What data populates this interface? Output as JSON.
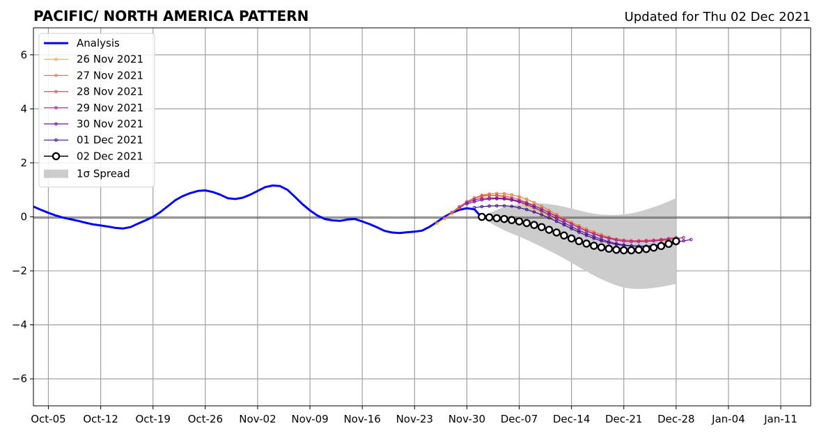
{
  "chart_data": {
    "type": "line",
    "title": "PACIFIC/ NORTH AMERICA PATTERN",
    "subtitle": "Updated for Thu 02 Dec 2021",
    "xlabel": "",
    "ylabel": "",
    "ylim": [
      -7,
      7
    ],
    "xlim_days": [
      "2021-10-03",
      "2022-01-15"
    ],
    "grid": true,
    "legend_position": "top-left",
    "x_ticks": [
      {
        "date": "2021-10-05",
        "label": "Oct-05"
      },
      {
        "date": "2021-10-12",
        "label": "Oct-12"
      },
      {
        "date": "2021-10-19",
        "label": "Oct-19"
      },
      {
        "date": "2021-10-26",
        "label": "Oct-26"
      },
      {
        "date": "2021-11-02",
        "label": "Nov-02"
      },
      {
        "date": "2021-11-09",
        "label": "Nov-09"
      },
      {
        "date": "2021-11-16",
        "label": "Nov-16"
      },
      {
        "date": "2021-11-23",
        "label": "Nov-23"
      },
      {
        "date": "2021-11-30",
        "label": "Nov-30"
      },
      {
        "date": "2021-12-07",
        "label": "Dec-07"
      },
      {
        "date": "2021-12-14",
        "label": "Dec-14"
      },
      {
        "date": "2021-12-21",
        "label": "Dec-21"
      },
      {
        "date": "2021-12-28",
        "label": "Dec-28"
      },
      {
        "date": "2022-01-04",
        "label": "Jan-04"
      },
      {
        "date": "2022-01-11",
        "label": "Jan-11"
      }
    ],
    "y_ticks": [
      {
        "value": 6,
        "label": "6"
      },
      {
        "value": 4,
        "label": "4"
      },
      {
        "value": 2,
        "label": "2"
      },
      {
        "value": 0,
        "label": "0"
      },
      {
        "value": -2,
        "label": "−2"
      },
      {
        "value": -4,
        "label": "−4"
      },
      {
        "value": -6,
        "label": "−6"
      }
    ],
    "analysis": {
      "name": "Analysis",
      "color": "#0000ff",
      "start_date": "2021-10-03",
      "values": [
        0.38,
        0.26,
        0.15,
        0.05,
        -0.03,
        -0.09,
        -0.15,
        -0.22,
        -0.28,
        -0.32,
        -0.36,
        -0.41,
        -0.43,
        -0.38,
        -0.25,
        -0.13,
        0.0,
        0.18,
        0.4,
        0.62,
        0.77,
        0.88,
        0.96,
        0.98,
        0.92,
        0.82,
        0.69,
        0.66,
        0.71,
        0.82,
        0.96,
        1.1,
        1.16,
        1.14,
        1.0,
        0.74,
        0.47,
        0.24,
        0.05,
        -0.08,
        -0.13,
        -0.15,
        -0.1,
        -0.08,
        -0.17,
        -0.27,
        -0.39,
        -0.52,
        -0.58,
        -0.6,
        -0.57,
        -0.55,
        -0.51,
        -0.37,
        -0.19,
        0.0,
        0.15,
        0.26,
        0.32,
        0.28,
        -0.02
      ]
    },
    "forecasts": [
      {
        "name": "26 Nov 2021",
        "color": "#f9a825",
        "start_date": "2021-11-26",
        "values": [
          -0.24,
          -0.06,
          0.14,
          0.36,
          0.53,
          0.66,
          0.75,
          0.79,
          0.78,
          0.73,
          0.66,
          0.55,
          0.43,
          0.3,
          0.17,
          0.03,
          -0.09
        ]
      },
      {
        "name": "27 Nov 2021",
        "color": "#ee7b2f",
        "start_date": "2021-11-27",
        "values": [
          -0.06,
          0.15,
          0.38,
          0.56,
          0.7,
          0.8,
          0.85,
          0.87,
          0.86,
          0.82,
          0.75,
          0.65,
          0.53,
          0.39,
          0.24,
          0.09,
          -0.06,
          -0.2,
          -0.33,
          -0.45,
          -0.56,
          -0.66,
          -0.75,
          -0.82,
          -0.86,
          -0.88,
          -0.89,
          -0.89,
          -0.89,
          -0.88,
          -0.86
        ]
      },
      {
        "name": "28 Nov 2021",
        "color": "#d95166",
        "start_date": "2021-11-28",
        "values": [
          0.17,
          0.38,
          0.56,
          0.7,
          0.78,
          0.8,
          0.8,
          0.77,
          0.72,
          0.64,
          0.54,
          0.42,
          0.3,
          0.15,
          0.01,
          -0.13,
          -0.26,
          -0.4,
          -0.52,
          -0.62,
          -0.71,
          -0.78,
          -0.83,
          -0.86,
          -0.88,
          -0.88,
          -0.87,
          -0.86,
          -0.83,
          -0.8,
          -0.76
        ]
      },
      {
        "name": "29 Nov 2021",
        "color": "#a3238f",
        "start_date": "2021-11-29",
        "values": [
          0.32,
          0.52,
          0.63,
          0.68,
          0.7,
          0.7,
          0.69,
          0.65,
          0.59,
          0.51,
          0.41,
          0.29,
          0.16,
          0.02,
          -0.12,
          -0.26,
          -0.39,
          -0.52,
          -0.63,
          -0.73,
          -0.8,
          -0.86,
          -0.9,
          -0.92,
          -0.92,
          -0.91,
          -0.89,
          -0.86,
          -0.83,
          -0.8,
          -0.77
        ]
      },
      {
        "name": "30 Nov 2021",
        "color": "#6a13a6",
        "start_date": "2021-11-30",
        "values": [
          0.48,
          0.56,
          0.63,
          0.66,
          0.67,
          0.66,
          0.62,
          0.55,
          0.46,
          0.35,
          0.22,
          0.08,
          -0.07,
          -0.22,
          -0.36,
          -0.5,
          -0.62,
          -0.73,
          -0.83,
          -0.92,
          -0.99,
          -1.04,
          -1.07,
          -1.08,
          -1.08,
          -1.06,
          -1.03,
          -0.99,
          -0.94,
          -0.89,
          -0.84
        ]
      },
      {
        "name": "01 Dec 2021",
        "color": "#3b0f88",
        "start_date": "2021-12-01",
        "values": [
          0.34,
          0.38,
          0.4,
          0.41,
          0.41,
          0.39,
          0.34,
          0.27,
          0.18,
          0.08,
          -0.04,
          -0.17,
          -0.3,
          -0.44,
          -0.57,
          -0.69,
          -0.8,
          -0.89,
          -0.96,
          -1.02,
          -1.06,
          -1.08,
          -1.09,
          -1.09,
          -1.08,
          -1.06,
          -1.03,
          -1.0
        ]
      },
      {
        "name": "02 Dec 2021",
        "color": "#000000",
        "start_date": "2021-12-02",
        "values": [
          0.0,
          -0.02,
          -0.05,
          -0.08,
          -0.12,
          -0.17,
          -0.23,
          -0.3,
          -0.38,
          -0.48,
          -0.58,
          -0.69,
          -0.8,
          -0.9,
          -0.99,
          -1.07,
          -1.13,
          -1.18,
          -1.22,
          -1.24,
          -1.24,
          -1.22,
          -1.19,
          -1.14,
          -1.08,
          -1.0,
          -0.9
        ]
      }
    ],
    "spread": {
      "name": "1σ Spread",
      "color": "#cccccc",
      "start_date": "2021-12-02",
      "upper": [
        0.0,
        0.14,
        0.26,
        0.36,
        0.42,
        0.47,
        0.5,
        0.51,
        0.5,
        0.47,
        0.43,
        0.37,
        0.31,
        0.24,
        0.17,
        0.12,
        0.08,
        0.07,
        0.07,
        0.09,
        0.13,
        0.19,
        0.27,
        0.36,
        0.46,
        0.57,
        0.7
      ],
      "lower": [
        -0.02,
        -0.2,
        -0.36,
        -0.5,
        -0.62,
        -0.73,
        -0.85,
        -0.98,
        -1.11,
        -1.25,
        -1.39,
        -1.54,
        -1.7,
        -1.86,
        -2.02,
        -2.17,
        -2.31,
        -2.43,
        -2.54,
        -2.62,
        -2.66,
        -2.67,
        -2.66,
        -2.63,
        -2.59,
        -2.54,
        -2.48
      ]
    }
  }
}
